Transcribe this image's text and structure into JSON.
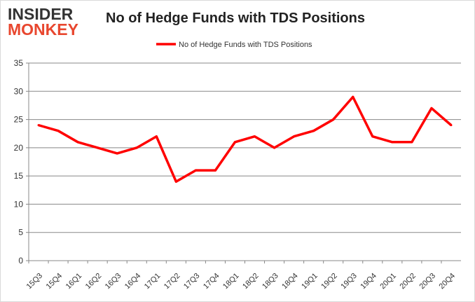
{
  "logo": {
    "line1": "INSIDER",
    "line2": "MONKEY"
  },
  "chart_data": {
    "type": "line",
    "title": "No of Hedge Funds with TDS Positions",
    "xlabel": "",
    "ylabel": "",
    "categories": [
      "15Q3",
      "15Q4",
      "16Q1",
      "16Q2",
      "16Q3",
      "16Q4",
      "17Q1",
      "17Q2",
      "17Q3",
      "17Q4",
      "18Q1",
      "18Q2",
      "18Q3",
      "18Q4",
      "19Q1",
      "19Q2",
      "19Q3",
      "19Q4",
      "20Q1",
      "20Q2",
      "20Q3",
      "20Q4"
    ],
    "series": [
      {
        "name": "No of Hedge Funds with TDS Positions",
        "color": "#ff0000",
        "values": [
          24,
          23,
          21,
          20,
          19,
          20,
          22,
          14,
          16,
          16,
          21,
          22,
          20,
          22,
          23,
          25,
          29,
          22,
          21,
          21,
          27,
          24
        ]
      }
    ],
    "ylim": [
      0,
      35
    ],
    "yticks": [
      0,
      5,
      10,
      15,
      20,
      25,
      30,
      35
    ],
    "grid": true,
    "legend": "top-center"
  }
}
